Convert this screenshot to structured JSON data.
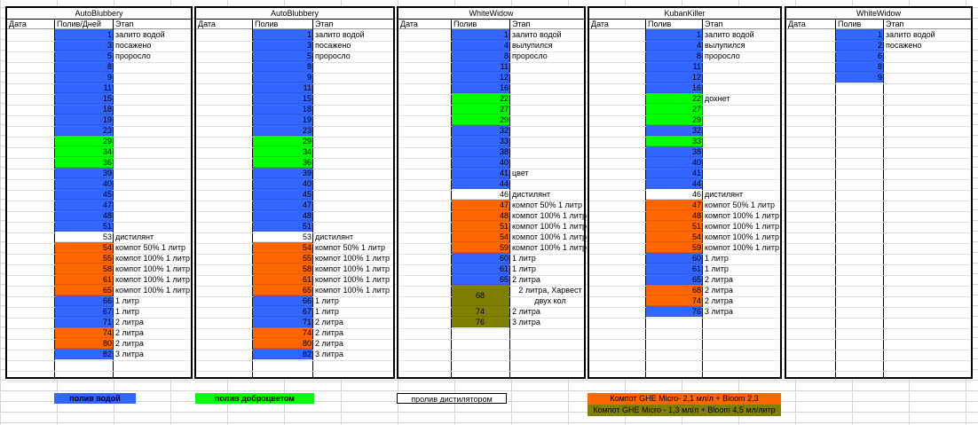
{
  "colors": {
    "water": "#3366ff",
    "fertilizer_green": "#00ff00",
    "compost": "#ff6600",
    "olive": "#808000",
    "distill": "#ffffff"
  },
  "tables": [
    {
      "title": "AutoBlubbery",
      "headers": [
        "Дата",
        "Полив/Дней",
        "Этап"
      ],
      "rows": [
        {
          "v": "1",
          "c": "water",
          "e": "залито водой"
        },
        {
          "v": "3",
          "c": "water",
          "e": "посажено"
        },
        {
          "v": "5",
          "c": "water",
          "e": "проросло"
        },
        {
          "v": "8",
          "c": "water",
          "e": ""
        },
        {
          "v": "9",
          "c": "water",
          "e": ""
        },
        {
          "v": "11",
          "c": "water",
          "e": ""
        },
        {
          "v": "15",
          "c": "water",
          "e": ""
        },
        {
          "v": "18",
          "c": "water",
          "e": ""
        },
        {
          "v": "19",
          "c": "water",
          "e": ""
        },
        {
          "v": "23",
          "c": "water",
          "e": ""
        },
        {
          "v": "29",
          "c": "fertilizer_green",
          "e": ""
        },
        {
          "v": "34",
          "c": "fertilizer_green",
          "e": ""
        },
        {
          "v": "36",
          "c": "fertilizer_green",
          "e": ""
        },
        {
          "v": "39",
          "c": "water",
          "e": ""
        },
        {
          "v": "40",
          "c": "water",
          "e": ""
        },
        {
          "v": "45",
          "c": "water",
          "e": ""
        },
        {
          "v": "47",
          "c": "water",
          "e": ""
        },
        {
          "v": "48",
          "c": "water",
          "e": ""
        },
        {
          "v": "51",
          "c": "water",
          "e": ""
        },
        {
          "v": "53",
          "c": "distill",
          "e": "дистилянт"
        },
        {
          "v": "54",
          "c": "compost",
          "e": "компот 50% 1 литр"
        },
        {
          "v": "55",
          "c": "compost",
          "e": "компот 100% 1 литр"
        },
        {
          "v": "58",
          "c": "compost",
          "e": "компот 100% 1 литр"
        },
        {
          "v": "61",
          "c": "compost",
          "e": "компот 100% 1 литр"
        },
        {
          "v": "65",
          "c": "compost",
          "e": "компот 100% 1 литр"
        },
        {
          "v": "66",
          "c": "water",
          "e": "1 литр"
        },
        {
          "v": "67",
          "c": "water",
          "e": "1 литр"
        },
        {
          "v": "71",
          "c": "water",
          "e": "2 литра"
        },
        {
          "v": "74",
          "c": "compost",
          "e": "2 литра"
        },
        {
          "v": "80",
          "c": "compost",
          "e": "2 литра"
        },
        {
          "v": "82",
          "c": "water",
          "e": "3 литра"
        }
      ]
    },
    {
      "title": "AutoBlubbery",
      "headers": [
        "Дата",
        "Полив",
        "Этап"
      ],
      "rows": [
        {
          "v": "1",
          "c": "water",
          "e": "залито водой"
        },
        {
          "v": "3",
          "c": "water",
          "e": "посажено"
        },
        {
          "v": "5",
          "c": "water",
          "e": "проросло"
        },
        {
          "v": "8",
          "c": "water",
          "e": ""
        },
        {
          "v": "9",
          "c": "water",
          "e": ""
        },
        {
          "v": "11",
          "c": "water",
          "e": ""
        },
        {
          "v": "15",
          "c": "water",
          "e": ""
        },
        {
          "v": "18",
          "c": "water",
          "e": ""
        },
        {
          "v": "19",
          "c": "water",
          "e": ""
        },
        {
          "v": "23",
          "c": "water",
          "e": ""
        },
        {
          "v": "29",
          "c": "fertilizer_green",
          "e": ""
        },
        {
          "v": "34",
          "c": "fertilizer_green",
          "e": ""
        },
        {
          "v": "36",
          "c": "fertilizer_green",
          "e": ""
        },
        {
          "v": "39",
          "c": "water",
          "e": ""
        },
        {
          "v": "40",
          "c": "water",
          "e": ""
        },
        {
          "v": "45",
          "c": "water",
          "e": ""
        },
        {
          "v": "47",
          "c": "water",
          "e": ""
        },
        {
          "v": "48",
          "c": "water",
          "e": ""
        },
        {
          "v": "51",
          "c": "water",
          "e": ""
        },
        {
          "v": "53",
          "c": "distill",
          "e": "дистилянт"
        },
        {
          "v": "54",
          "c": "compost",
          "e": "компот 50% 1 литр"
        },
        {
          "v": "55",
          "c": "compost",
          "e": "компот 100% 1 литр"
        },
        {
          "v": "58",
          "c": "compost",
          "e": "компот 100% 1 литр"
        },
        {
          "v": "61",
          "c": "compost",
          "e": "компот 100% 1 литр"
        },
        {
          "v": "65",
          "c": "compost",
          "e": "компот 100% 1 литр"
        },
        {
          "v": "66",
          "c": "water",
          "e": "1 литр"
        },
        {
          "v": "67",
          "c": "water",
          "e": "1 литр"
        },
        {
          "v": "71",
          "c": "water",
          "e": "2 литра"
        },
        {
          "v": "74",
          "c": "compost",
          "e": "2 литра"
        },
        {
          "v": "80",
          "c": "compost",
          "e": "2 литра"
        },
        {
          "v": "82",
          "c": "water",
          "e": "3 литра"
        }
      ]
    },
    {
      "title": "WhiteWidow",
      "headers": [
        "Дата",
        "Полив",
        "Этап"
      ],
      "rows": [
        {
          "v": "1",
          "c": "water",
          "e": "залито водой"
        },
        {
          "v": "4",
          "c": "water",
          "e": "вылупился"
        },
        {
          "v": "8",
          "c": "water",
          "e": "проросло"
        },
        {
          "v": "11",
          "c": "water",
          "e": ""
        },
        {
          "v": "12",
          "c": "water",
          "e": ""
        },
        {
          "v": "16",
          "c": "water",
          "e": ""
        },
        {
          "v": "22",
          "c": "fertilizer_green",
          "e": ""
        },
        {
          "v": "27",
          "c": "fertilizer_green",
          "e": ""
        },
        {
          "v": "29",
          "c": "fertilizer_green",
          "e": ""
        },
        {
          "v": "32",
          "c": "water",
          "e": ""
        },
        {
          "v": "33",
          "c": "water",
          "e": ""
        },
        {
          "v": "38",
          "c": "water",
          "e": ""
        },
        {
          "v": "40",
          "c": "water",
          "e": ""
        },
        {
          "v": "41",
          "c": "water",
          "e": "цвет"
        },
        {
          "v": "44",
          "c": "water",
          "e": ""
        },
        {
          "v": "46",
          "c": "distill",
          "e": "дистилянт"
        },
        {
          "v": "47",
          "c": "compost",
          "e": "компот 50% 1 литр"
        },
        {
          "v": "48",
          "c": "compost",
          "e": "компот 100% 1 литр"
        },
        {
          "v": "51",
          "c": "compost",
          "e": "компот 100% 1 литр"
        },
        {
          "v": "54",
          "c": "compost",
          "e": "компот 100% 1 литр"
        },
        {
          "v": "59",
          "c": "compost",
          "e": "компот 100% 1 литр"
        },
        {
          "v": "60",
          "c": "water",
          "e": "1 литр"
        },
        {
          "v": "61",
          "c": "water",
          "e": "1 литр"
        },
        {
          "v": "65",
          "c": "water",
          "e": "2 литра"
        },
        {
          "v": "68",
          "c": "olive",
          "e": "2 литра, Харвест двух кол",
          "span": 2
        },
        {
          "v": "74",
          "c": "olive",
          "e": "2 литра"
        },
        {
          "v": "76",
          "c": "olive",
          "e": "3 литра"
        }
      ]
    },
    {
      "title": "KubanKiller",
      "headers": [
        "Дата",
        "Полив",
        "Этап"
      ],
      "rows": [
        {
          "v": "1",
          "c": "water",
          "e": "залито водой"
        },
        {
          "v": "4",
          "c": "water",
          "e": "вылупился"
        },
        {
          "v": "8",
          "c": "water",
          "e": "проросло"
        },
        {
          "v": "11",
          "c": "water",
          "e": ""
        },
        {
          "v": "12",
          "c": "water",
          "e": ""
        },
        {
          "v": "16",
          "c": "water",
          "e": ""
        },
        {
          "v": "22",
          "c": "fertilizer_green",
          "e": "дохнет"
        },
        {
          "v": "27",
          "c": "fertilizer_green",
          "e": ""
        },
        {
          "v": "29",
          "c": "fertilizer_green",
          "e": ""
        },
        {
          "v": "32",
          "c": "water",
          "e": ""
        },
        {
          "v": "33",
          "c": "fertilizer_green",
          "e": ""
        },
        {
          "v": "38",
          "c": "water",
          "e": ""
        },
        {
          "v": "40",
          "c": "water",
          "e": ""
        },
        {
          "v": "41",
          "c": "water",
          "e": ""
        },
        {
          "v": "44",
          "c": "water",
          "e": ""
        },
        {
          "v": "46",
          "c": "distill",
          "e": "дистилянт"
        },
        {
          "v": "47",
          "c": "compost",
          "e": "компот 50% 1 литр"
        },
        {
          "v": "48",
          "c": "compost",
          "e": "компот 100% 1 литр"
        },
        {
          "v": "51",
          "c": "compost",
          "e": "компот 100% 1 литр"
        },
        {
          "v": "54",
          "c": "compost",
          "e": "компот 100% 1 литр"
        },
        {
          "v": "59",
          "c": "compost",
          "e": "компот 100% 1 литр"
        },
        {
          "v": "60",
          "c": "water",
          "e": "1 литр"
        },
        {
          "v": "61",
          "c": "water",
          "e": "1 литр"
        },
        {
          "v": "65",
          "c": "water",
          "e": "2 литра"
        },
        {
          "v": "68",
          "c": "compost",
          "e": "2 литра"
        },
        {
          "v": "74",
          "c": "compost",
          "e": "2 литра"
        },
        {
          "v": "76",
          "c": "water",
          "e": "3 литра"
        }
      ]
    },
    {
      "title": "WhiteWidow",
      "headers": [
        "Дата",
        "Полив",
        "Этап"
      ],
      "rows": [
        {
          "v": "1",
          "c": "water",
          "e": "залито водой"
        },
        {
          "v": "2",
          "c": "water",
          "e": "посажено"
        },
        {
          "v": "6",
          "c": "water",
          "e": ""
        },
        {
          "v": "8",
          "c": "water",
          "e": ""
        },
        {
          "v": "9",
          "c": "water",
          "e": ""
        }
      ]
    }
  ],
  "legend": [
    {
      "label": "полив водой",
      "c": "water"
    },
    {
      "label": "полив доброцветом",
      "c": "fertilizer_green"
    },
    {
      "label": "пролив дистилятором",
      "c": "distill"
    },
    {
      "label": "Компот GHE Micro-  2,1 мл/л  + Bloom 2,3",
      "c": "compost"
    },
    {
      "label": "Компот GHE Micro - 1,3 мл/л + Bloom 4,5 мл/литр",
      "c": "olive"
    }
  ]
}
